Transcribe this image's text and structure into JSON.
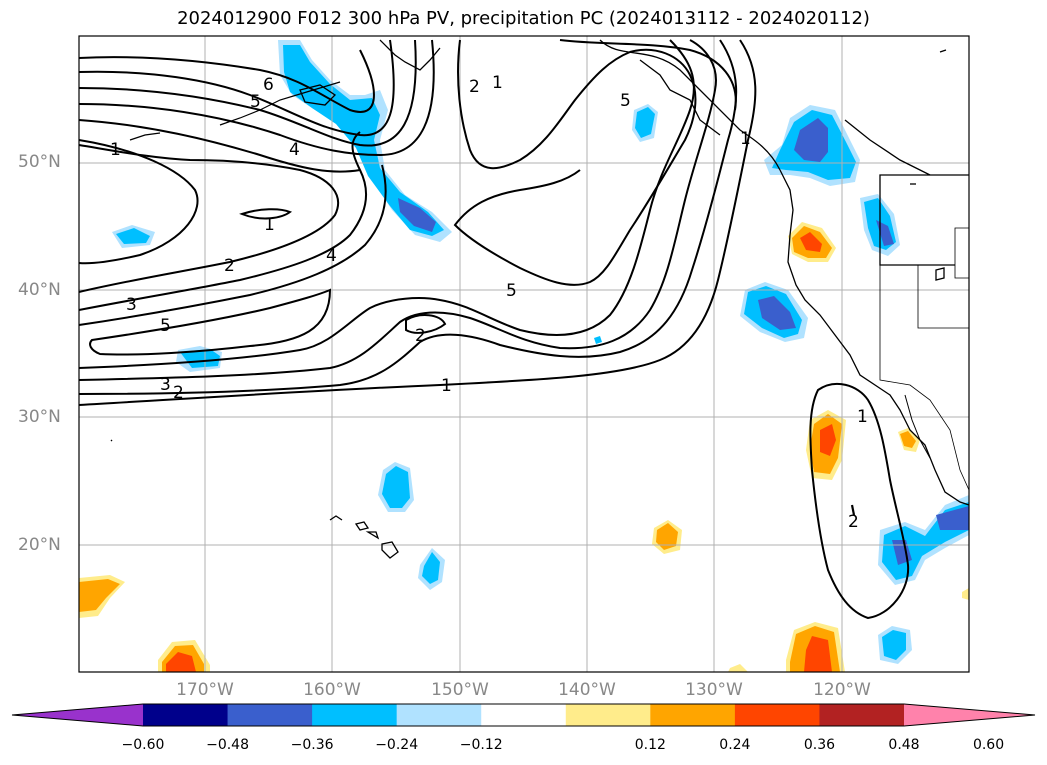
{
  "title": "2024012900 F012 300 hPa PV, precipitation PC (2024013112 - 2024020112)",
  "latitude_labels": [
    "50°N",
    "40°N",
    "30°N",
    "20°N"
  ],
  "longitude_labels": [
    "170°W",
    "160°W",
    "150°W",
    "140°W",
    "130°W",
    "120°W"
  ],
  "colorbar": {
    "tick_labels": [
      "−0.60",
      "−0.48",
      "−0.36",
      "−0.24",
      "−0.12",
      "0.12",
      "0.24",
      "0.36",
      "0.48",
      "0.60"
    ],
    "colors": [
      "#9932cc",
      "#00008b",
      "#3a5fcd",
      "#00bfff",
      "#b0e2ff",
      "#ffffff",
      "#ffec8b",
      "#ffa500",
      "#ff4500",
      "#b22222",
      "#ff82ab"
    ]
  },
  "contour_labels": [
    "6",
    "5",
    "4",
    "1",
    "1",
    "2",
    "3",
    "5",
    "4",
    "1",
    "2",
    "3",
    "2",
    "1",
    "2",
    "1",
    "5",
    "5",
    "1",
    "2"
  ],
  "colors": {
    "contour": "#000000",
    "grid": "#b0b0b0",
    "coast": "#000000"
  }
}
